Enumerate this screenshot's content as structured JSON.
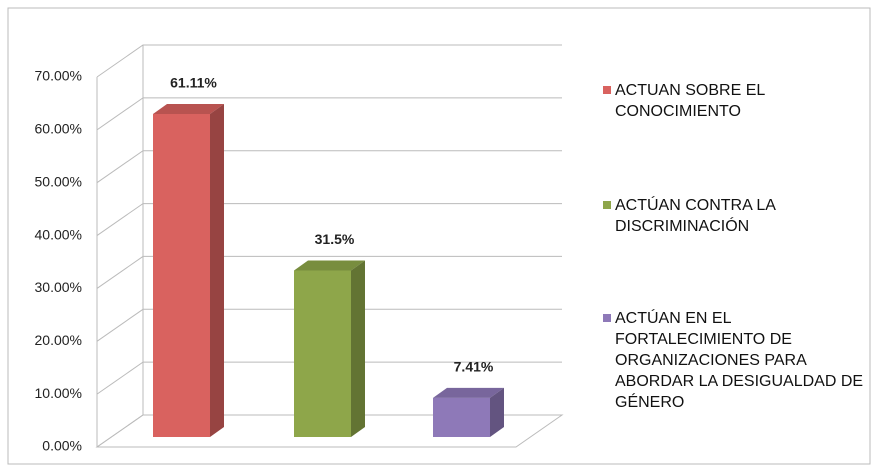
{
  "chart_data": {
    "type": "bar3d",
    "series": [
      {
        "name": "ACTUAN SOBRE EL CONOCIMIENTO",
        "color": "#d9625f",
        "values": [
          61.11
        ],
        "value_labels": [
          "61.11%"
        ]
      },
      {
        "name": "ACTÚAN CONTRA LA DISCRIMINACIÓN",
        "color": "#8ea64a",
        "values": [
          31.5
        ],
        "value_labels": [
          "31.5%"
        ]
      },
      {
        "name": "ACTÚAN EN EL FORTALECIMIENTO DE ORGANIZACIONES PARA ABORDAR LA DESIGUALDAD DE GÉNERO",
        "color": "#8e79b8",
        "values": [
          7.41
        ],
        "value_labels": [
          "7.41%"
        ]
      }
    ],
    "ylim": [
      0,
      70
    ],
    "yticks": [
      {
        "value": 0,
        "label": "0.00%"
      },
      {
        "value": 10,
        "label": "10.00%"
      },
      {
        "value": 20,
        "label": "20.00%"
      },
      {
        "value": 30,
        "label": "30.00%"
      },
      {
        "value": 40,
        "label": "40.00%"
      },
      {
        "value": 50,
        "label": "50.00%"
      },
      {
        "value": 60,
        "label": "60.00%"
      },
      {
        "value": 70,
        "label": "70.00%"
      }
    ],
    "grid": true,
    "legend": "right"
  }
}
